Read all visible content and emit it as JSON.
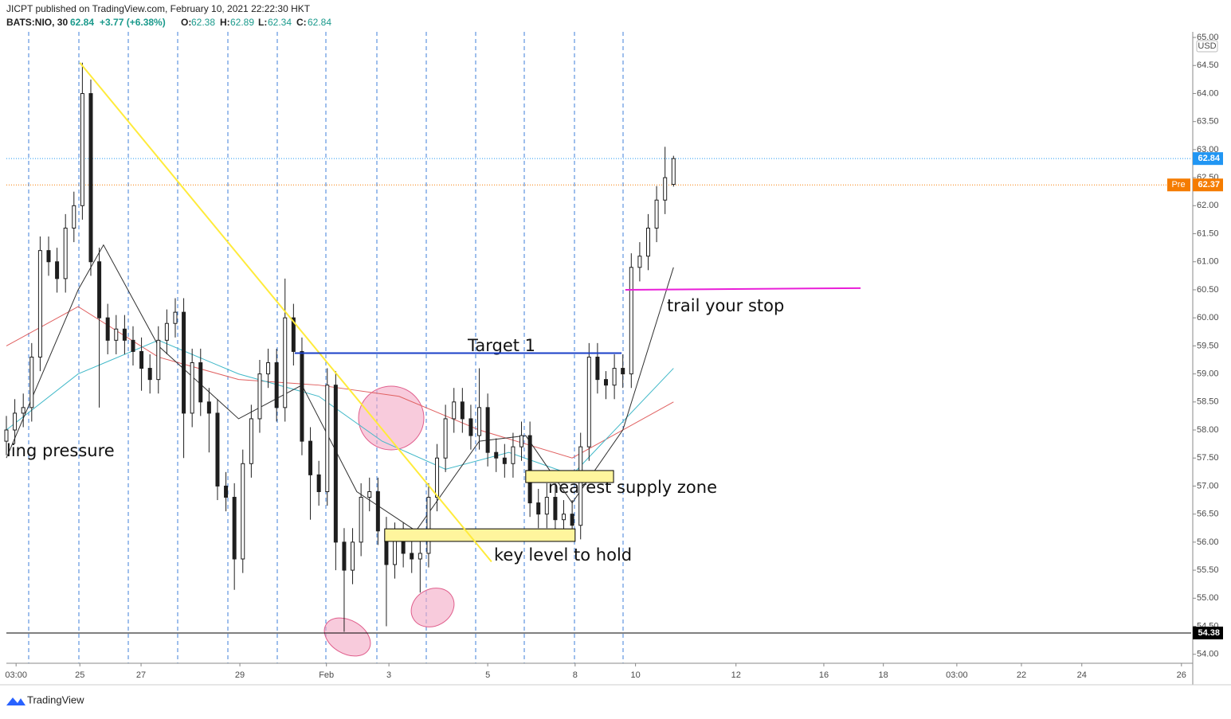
{
  "chart_data": {
    "type": "candlestick",
    "header": {
      "publisher": "JICPT published on TradingView.com, February 10, 2021 22:22:30 HKT",
      "symbol": "BATS:NIO, 30",
      "last": "62.84",
      "change": "+3.77 (+6.38%)",
      "o_label": "O:",
      "o": "62.38",
      "h_label": "H:",
      "h": "62.89",
      "l_label": "L:",
      "l": "62.34",
      "c_label": "C:",
      "c": "62.84"
    },
    "footer": "TradingView",
    "currency": "USD",
    "ylim": [
      53.84,
      65.1
    ],
    "yticks": [
      {
        "value": 54,
        "label": "54.00"
      },
      {
        "value": 54.5,
        "label": "54.50"
      },
      {
        "value": 55,
        "label": "55.00"
      },
      {
        "value": 55.5,
        "label": "55.50"
      },
      {
        "value": 56,
        "label": "56.00"
      },
      {
        "value": 56.5,
        "label": "56.50"
      },
      {
        "value": 57,
        "label": "57.00"
      },
      {
        "value": 57.5,
        "label": "57.50"
      },
      {
        "value": 58,
        "label": "58.00"
      },
      {
        "value": 58.5,
        "label": "58.50"
      },
      {
        "value": 59,
        "label": "59.00"
      },
      {
        "value": 59.5,
        "label": "59.50"
      },
      {
        "value": 60,
        "label": "60.00"
      },
      {
        "value": 60.5,
        "label": "60.50"
      },
      {
        "value": 61,
        "label": "61.00"
      },
      {
        "value": 61.5,
        "label": "61.50"
      },
      {
        "value": 62,
        "label": "62.00"
      },
      {
        "value": 62.5,
        "label": "62.50"
      },
      {
        "value": 63,
        "label": "63.00"
      },
      {
        "value": 63.5,
        "label": "63.50"
      },
      {
        "value": 64,
        "label": "64.00"
      },
      {
        "value": 64.5,
        "label": "64.50"
      },
      {
        "value": 65,
        "label": "65.00"
      }
    ],
    "xlim": [
      0,
      280.6
    ],
    "xticks": [
      {
        "value": 2.3,
        "label": "03:00"
      },
      {
        "value": 17.4,
        "label": "25"
      },
      {
        "value": 31.9,
        "label": "27"
      },
      {
        "value": 55.3,
        "label": "29"
      },
      {
        "value": 75.8,
        "label": "Feb"
      },
      {
        "value": 90.6,
        "label": "3"
      },
      {
        "value": 114,
        "label": "5"
      },
      {
        "value": 134.7,
        "label": "8"
      },
      {
        "value": 149,
        "label": "10"
      },
      {
        "value": 172.8,
        "label": "12"
      },
      {
        "value": 193.6,
        "label": "16"
      },
      {
        "value": 207.7,
        "label": "18"
      },
      {
        "value": 225.1,
        "label": "03:00"
      },
      {
        "value": 240.4,
        "label": "22"
      },
      {
        "value": 254.7,
        "label": "24"
      },
      {
        "value": 278.3,
        "label": "26"
      }
    ],
    "up_color": "#ffffff",
    "down_color": "#1e1e1e",
    "wick_color": "#1e1e1e",
    "x": [
      0,
      2,
      4,
      6,
      8,
      10,
      12,
      14,
      16,
      18,
      20,
      22,
      24,
      26,
      28,
      30,
      32,
      34,
      36,
      38,
      40,
      42,
      44,
      46,
      48,
      50,
      52,
      54,
      56,
      58,
      60,
      62,
      64,
      66,
      68,
      70,
      72,
      74,
      76,
      78,
      80,
      82,
      84,
      86,
      88,
      90,
      92,
      94,
      96,
      98,
      100,
      102,
      104,
      106,
      108,
      110,
      112,
      114,
      116,
      118,
      120,
      122,
      124,
      126,
      128,
      130,
      132,
      134,
      136,
      138,
      140,
      142,
      144,
      146,
      148,
      150,
      152,
      154,
      156,
      158
    ],
    "open": [
      57.8,
      58.0,
      58.3,
      58.4,
      59.3,
      61.2,
      61.0,
      60.7,
      61.6,
      62.0,
      64.0,
      61.0,
      60.0,
      59.6,
      59.8,
      59.6,
      59.4,
      59.1,
      58.9,
      59.6,
      59.9,
      60.1,
      58.3,
      59.2,
      58.5,
      58.3,
      57.0,
      56.8,
      55.7,
      57.4,
      58.2,
      59.0,
      59.2,
      58.4,
      60.0,
      59.4,
      57.8,
      57.2,
      56.9,
      58.8,
      56.0,
      55.5,
      56.0,
      56.8,
      56.9,
      56.2,
      55.6,
      56.1,
      55.8,
      55.7,
      55.8,
      56.8,
      57.5,
      58.2,
      58.5,
      58.2,
      57.9,
      58.4,
      57.6,
      57.5,
      57.4,
      57.7,
      57.9,
      56.7,
      56.5,
      56.8,
      56.4,
      56.5,
      56.3,
      57.7,
      59.3,
      58.9,
      58.8,
      59.1,
      59.0,
      60.9,
      61.1,
      61.6,
      62.1,
      62.38
    ],
    "high": [
      58.25,
      58.55,
      58.65,
      59.55,
      61.45,
      61.45,
      61.25,
      61.85,
      62.25,
      64.55,
      64.25,
      61.25,
      60.25,
      60.05,
      60.05,
      59.85,
      59.65,
      59.35,
      59.85,
      60.15,
      60.35,
      60.35,
      59.45,
      59.45,
      58.75,
      58.55,
      57.25,
      57.05,
      57.65,
      58.45,
      59.25,
      59.45,
      59.45,
      60.7,
      60.25,
      59.65,
      58.05,
      57.45,
      59.1,
      59.05,
      56.25,
      56.25,
      57.05,
      57.15,
      57.15,
      56.45,
      56.35,
      56.35,
      56.05,
      56.05,
      57.05,
      57.75,
      58.45,
      58.75,
      58.75,
      58.45,
      59.1,
      58.65,
      57.85,
      57.75,
      57.95,
      58.15,
      58.15,
      56.95,
      57.05,
      57.05,
      56.75,
      56.75,
      57.95,
      59.55,
      59.55,
      59.05,
      59.35,
      59.35,
      61.15,
      61.35,
      61.85,
      62.35,
      63.05,
      62.89
    ],
    "low": [
      57.55,
      57.75,
      58.05,
      58.15,
      59.05,
      60.75,
      60.45,
      60.45,
      61.35,
      61.75,
      60.75,
      58.4,
      59.35,
      59.35,
      59.35,
      59.15,
      58.7,
      58.65,
      58.65,
      59.35,
      59.65,
      57.5,
      58.05,
      58.25,
      57.6,
      56.75,
      56.55,
      55.15,
      55.45,
      57.15,
      57.95,
      58.75,
      58.15,
      58.15,
      59.15,
      57.55,
      56.4,
      56.65,
      56.65,
      55.5,
      54.4,
      55.25,
      55.75,
      56.55,
      55.95,
      54.5,
      55.35,
      55.55,
      55.45,
      55.1,
      55.55,
      56.55,
      57.25,
      57.95,
      57.95,
      57.65,
      57.65,
      57.35,
      57.25,
      57.15,
      57.15,
      57.45,
      56.45,
      56.25,
      56.25,
      56.15,
      56.15,
      56.05,
      56.05,
      57.45,
      58.65,
      58.55,
      58.55,
      58.75,
      58.75,
      60.65,
      60.85,
      61.35,
      61.85,
      62.34
    ],
    "close": [
      58.0,
      58.3,
      58.4,
      59.3,
      61.2,
      61.0,
      60.7,
      61.6,
      62.0,
      64.0,
      61.0,
      60.0,
      59.6,
      59.8,
      59.6,
      59.4,
      59.1,
      58.9,
      59.6,
      59.9,
      60.1,
      58.3,
      59.2,
      58.5,
      58.3,
      57.0,
      56.8,
      55.7,
      57.4,
      58.2,
      59.0,
      59.2,
      58.4,
      60.0,
      59.4,
      57.8,
      57.2,
      56.9,
      58.8,
      56.0,
      55.5,
      56.0,
      56.8,
      56.9,
      56.2,
      55.6,
      56.1,
      55.8,
      55.7,
      55.8,
      56.8,
      57.5,
      58.2,
      58.5,
      58.2,
      57.9,
      58.4,
      57.6,
      57.5,
      57.4,
      57.7,
      57.9,
      56.7,
      56.5,
      56.8,
      56.4,
      56.5,
      56.3,
      57.7,
      59.3,
      58.9,
      58.8,
      59.1,
      59.0,
      60.9,
      61.1,
      61.6,
      62.1,
      62.5,
      62.84
    ],
    "indicators": [
      {
        "color": "#e06060",
        "x": [
          0,
          17,
          36,
          55,
          74,
          93,
          112,
          134,
          158
        ],
        "values": [
          59.5,
          60.2,
          59.3,
          58.9,
          58.8,
          58.6,
          58.0,
          57.5,
          58.5
        ]
      },
      {
        "color": "#40b8c8",
        "x": [
          0,
          17,
          36,
          55,
          74,
          89,
          104,
          119,
          134,
          158
        ],
        "values": [
          58.0,
          59.0,
          59.6,
          59.0,
          58.6,
          57.8,
          57.3,
          57.6,
          57.2,
          59.1
        ]
      },
      {
        "color": "#303030",
        "x": [
          0,
          17,
          23,
          36,
          55,
          70,
          83,
          97,
          112,
          123,
          134,
          146,
          158
        ],
        "values": [
          57.5,
          60.5,
          61.3,
          59.5,
          58.2,
          58.8,
          56.9,
          56.2,
          57.8,
          57.9,
          56.7,
          58.0,
          60.9
        ]
      }
    ],
    "last_price": {
      "value": 62.84,
      "label": "62.84",
      "color": "#2196f3"
    },
    "pre_price": {
      "value": 62.37,
      "label": "62.37",
      "tag": "Pre",
      "color": "#f57c00"
    },
    "support_line": {
      "value": 54.38,
      "label": "54.38",
      "color": "#000000"
    },
    "trendline": {
      "x": [
        17.4,
        114.9
      ],
      "values": [
        64.55,
        55.65
      ],
      "color": "#ffeb3b"
    },
    "target": {
      "text": "Target 1",
      "x": [
        68.3,
        145.7
      ],
      "value": 59.37,
      "color": "#1a3fc8"
    },
    "stop": {
      "text": "trail your stop",
      "x": [
        146.6,
        202.3
      ],
      "values": [
        60.5,
        60.53
      ],
      "color": "#e91ed8"
    },
    "key_zone": {
      "text": "key level to hold",
      "x": [
        89.6,
        134.7
      ],
      "values": [
        56.07,
        56.18
      ],
      "color": "#fff59d"
    },
    "supply_zone": {
      "text": "nearest supply zone",
      "x": [
        123,
        143.8
      ],
      "values": [
        57.12,
        57.22
      ],
      "color": "#fff59d"
    },
    "selling_text": "ling pressure"
  }
}
